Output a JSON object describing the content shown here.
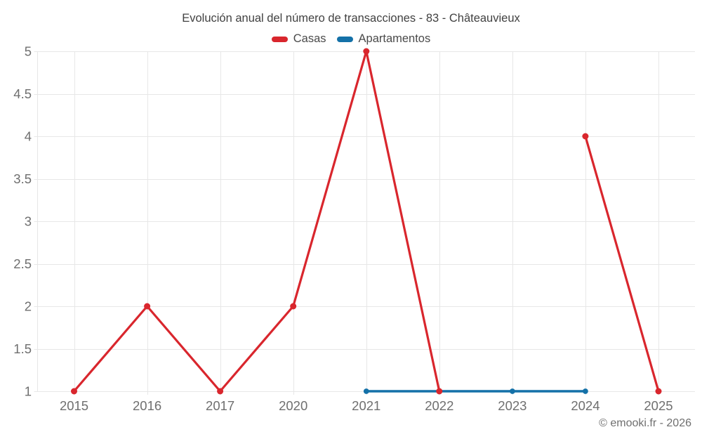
{
  "chart_data": {
    "type": "line",
    "title": "Evolución anual del número de transacciones - 83 - Châteauvieux",
    "categories": [
      "2015",
      "2016",
      "2017",
      "2020",
      "2021",
      "2022",
      "2023",
      "2024",
      "2025"
    ],
    "series": [
      {
        "name": "Casas",
        "color": "#d9262d",
        "values": [
          1,
          2,
          1,
          2,
          5,
          1,
          null,
          4,
          1
        ]
      },
      {
        "name": "Apartamentos",
        "color": "#1471a8",
        "values": [
          null,
          null,
          null,
          null,
          1,
          1,
          1,
          1,
          null
        ]
      }
    ],
    "ylim": [
      1,
      5
    ],
    "yticks": [
      1,
      1.5,
      2,
      2.5,
      3,
      3.5,
      4,
      4.5,
      5
    ],
    "grid": true,
    "legend_position": "top",
    "xlabel": "",
    "ylabel": ""
  },
  "colors": {
    "background": "#ffffff",
    "grid": "#e7e7e7",
    "tick_label": "#6f6f6f",
    "title_text": "#414141",
    "casas": "#d9262d",
    "apartamentos": "#1471a8"
  },
  "footer": {
    "copyright": "© emooki.fr - 2026"
  }
}
